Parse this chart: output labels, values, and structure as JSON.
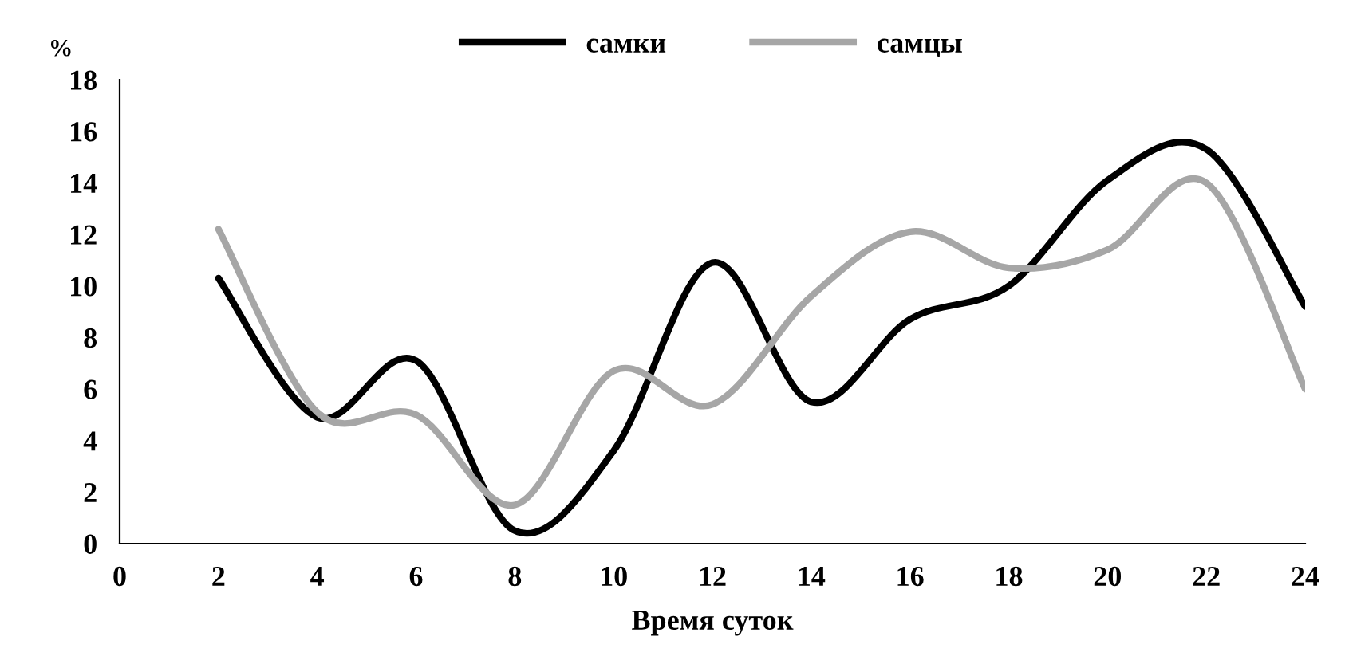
{
  "chart_data": {
    "type": "line",
    "xlabel": "Время суток",
    "ylabel": "%",
    "x": [
      2,
      4,
      6,
      8,
      10,
      12,
      14,
      16,
      18,
      20,
      22,
      24
    ],
    "series": [
      {
        "name": "самки",
        "color": "#000000",
        "values": [
          10.3,
          4.9,
          7.1,
          0.5,
          3.6,
          10.9,
          5.5,
          8.7,
          10.0,
          14.1,
          15.3,
          9.2
        ]
      },
      {
        "name": "самцы",
        "color": "#a6a6a6",
        "values": [
          12.2,
          5.1,
          5.0,
          1.5,
          6.7,
          5.4,
          9.6,
          12.1,
          10.7,
          11.4,
          14.0,
          6.0
        ]
      }
    ],
    "xlim": [
      0,
      24
    ],
    "xticks": [
      0,
      2,
      4,
      6,
      8,
      10,
      12,
      14,
      16,
      18,
      20,
      22,
      24
    ],
    "ylim": [
      0,
      18
    ],
    "yticks": [
      0,
      2,
      4,
      6,
      8,
      10,
      12,
      14,
      16,
      18
    ],
    "grid": false,
    "legend": "top",
    "marker": "none",
    "line_style": "solid"
  }
}
